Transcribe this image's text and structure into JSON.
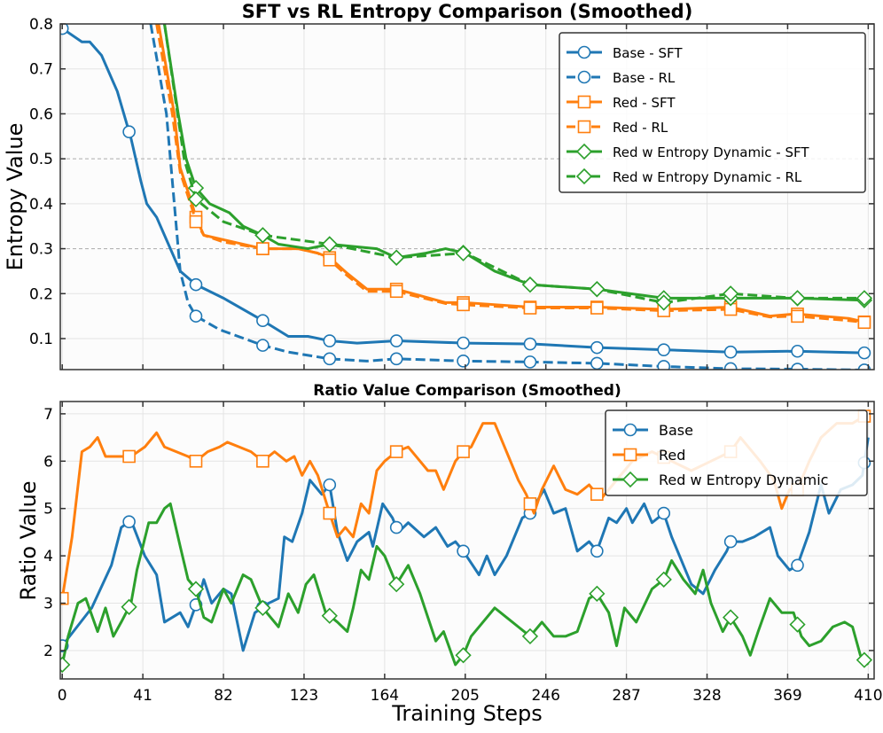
{
  "chart_data": [
    {
      "type": "line",
      "title": "SFT vs RL Entropy Comparison (Smoothed)",
      "xlabel": "",
      "ylabel": "Entropy Value",
      "xlim": [
        -1,
        413
      ],
      "ylim": [
        0.031,
        0.8
      ],
      "xticks": [
        0,
        41,
        82,
        123,
        164,
        205,
        246,
        287,
        328,
        369,
        410
      ],
      "yticks": [
        0.1,
        0.2,
        0.3,
        0.4,
        0.5,
        0.6,
        0.7,
        0.8
      ],
      "ytick_labels": [
        "0.1",
        "0.2",
        "0.3",
        "0.4",
        "0.5",
        "0.6",
        "0.7",
        "0.8"
      ],
      "grid": true,
      "legend": "top-right",
      "marker_steps": [
        0,
        34,
        68,
        102,
        136,
        170,
        204,
        238,
        272,
        306,
        340,
        374,
        408
      ],
      "series": [
        {
          "name": "Base - SFT",
          "color": "#1f77b4",
          "dash": "solid",
          "marker": "circle",
          "x": [
            0,
            10,
            14,
            20,
            28,
            35,
            40,
            43,
            48,
            54,
            60,
            68,
            82,
            102,
            115,
            125,
            136,
            150,
            170,
            205,
            240,
            272,
            306,
            340,
            373,
            410
          ],
          "y": [
            0.79,
            0.76,
            0.76,
            0.73,
            0.65,
            0.545,
            0.45,
            0.4,
            0.37,
            0.31,
            0.25,
            0.22,
            0.19,
            0.14,
            0.105,
            0.105,
            0.095,
            0.09,
            0.095,
            0.09,
            0.088,
            0.08,
            0.075,
            0.07,
            0.072,
            0.068
          ]
        },
        {
          "name": "Base - RL",
          "color": "#1f77b4",
          "dash": "dashed",
          "marker": "circle",
          "x": [
            45,
            53,
            57,
            60,
            64,
            68,
            80,
            102,
            115,
            136,
            155,
            170,
            205,
            238,
            272,
            306,
            340,
            373,
            410
          ],
          "y": [
            0.8,
            0.6,
            0.4,
            0.25,
            0.18,
            0.15,
            0.12,
            0.085,
            0.07,
            0.055,
            0.05,
            0.055,
            0.05,
            0.048,
            0.045,
            0.038,
            0.033,
            0.032,
            0.03
          ]
        },
        {
          "name": "Red - SFT",
          "color": "#ff7f0e",
          "dash": "solid",
          "marker": "square",
          "x": [
            49,
            57,
            60,
            66,
            68,
            72,
            82,
            102,
            120,
            130,
            136,
            145,
            155,
            170,
            195,
            205,
            238,
            272,
            306,
            340,
            360,
            373,
            400,
            410
          ],
          "y": [
            0.8,
            0.6,
            0.48,
            0.4,
            0.37,
            0.33,
            0.32,
            0.3,
            0.3,
            0.29,
            0.28,
            0.245,
            0.21,
            0.21,
            0.18,
            0.18,
            0.17,
            0.17,
            0.165,
            0.17,
            0.15,
            0.155,
            0.145,
            0.135
          ]
        },
        {
          "name": "Red - RL",
          "color": "#ff7f0e",
          "dash": "dashed",
          "marker": "square",
          "x": [
            48,
            56,
            60,
            66,
            68,
            72,
            82,
            102,
            120,
            130,
            136,
            145,
            155,
            170,
            195,
            205,
            238,
            272,
            306,
            340,
            360,
            373,
            400,
            410
          ],
          "y": [
            0.8,
            0.6,
            0.47,
            0.39,
            0.36,
            0.33,
            0.315,
            0.3,
            0.3,
            0.29,
            0.275,
            0.24,
            0.205,
            0.205,
            0.178,
            0.175,
            0.168,
            0.168,
            0.162,
            0.165,
            0.148,
            0.15,
            0.14,
            0.135
          ]
        },
        {
          "name": "Red w Entropy Dynamic - SFT",
          "color": "#2ca02c",
          "dash": "solid",
          "marker": "diamond",
          "x": [
            52,
            59,
            63,
            68,
            75,
            85,
            92,
            102,
            110,
            125,
            136,
            160,
            170,
            185,
            195,
            205,
            220,
            238,
            272,
            306,
            340,
            373,
            410
          ],
          "y": [
            0.8,
            0.6,
            0.5,
            0.435,
            0.4,
            0.38,
            0.35,
            0.33,
            0.31,
            0.3,
            0.31,
            0.3,
            0.28,
            0.29,
            0.3,
            0.29,
            0.25,
            0.22,
            0.21,
            0.19,
            0.19,
            0.19,
            0.185
          ]
        },
        {
          "name": "Red w Entropy Dynamic - RL",
          "color": "#2ca02c",
          "dash": "dashed",
          "marker": "diamond",
          "x": [
            52,
            62,
            68,
            82,
            102,
            136,
            170,
            205,
            238,
            272,
            306,
            340,
            373,
            410
          ],
          "y": [
            0.8,
            0.5,
            0.41,
            0.36,
            0.33,
            0.31,
            0.28,
            0.29,
            0.22,
            0.21,
            0.18,
            0.2,
            0.19,
            0.19
          ]
        }
      ]
    },
    {
      "type": "line",
      "title": "Ratio Value Comparison (Smoothed)",
      "xlabel": "Training Steps",
      "ylabel": "Ratio Value",
      "xlim": [
        -1,
        413
      ],
      "ylim": [
        1.4,
        7.26
      ],
      "xticks": [
        0,
        41,
        82,
        123,
        164,
        205,
        246,
        287,
        328,
        369,
        410
      ],
      "xtick_labels": [
        "0",
        "41",
        "82",
        "123",
        "164",
        "205",
        "246",
        "287",
        "328",
        "369",
        "410"
      ],
      "yticks": [
        2,
        3,
        4,
        5,
        6,
        7
      ],
      "ytick_labels": [
        "2",
        "3",
        "4",
        "5",
        "6",
        "7"
      ],
      "grid": true,
      "legend": "top-right",
      "marker_steps": [
        0,
        34,
        68,
        102,
        136,
        170,
        204,
        238,
        272,
        306,
        340,
        374,
        408
      ],
      "series": [
        {
          "name": "Base",
          "color": "#1f77b4",
          "marker": "circle",
          "x": [
            0,
            15,
            25,
            30,
            35,
            42,
            48,
            52,
            60,
            64,
            70,
            72,
            76,
            82,
            86,
            92,
            98,
            105,
            110,
            113,
            117,
            122,
            126,
            132,
            136,
            140,
            145,
            150,
            156,
            158,
            163,
            168,
            171,
            176,
            184,
            190,
            196,
            200,
            204,
            212,
            216,
            220,
            226,
            234,
            238,
            245,
            250,
            256,
            262,
            268,
            272,
            278,
            282,
            287,
            290,
            296,
            300,
            306,
            310,
            315,
            320,
            326,
            332,
            338,
            340,
            346,
            352,
            360,
            364,
            370,
            374,
            380,
            386,
            390,
            396,
            402,
            407,
            410
          ],
          "y": [
            2.1,
            2.9,
            3.8,
            4.6,
            4.75,
            4.0,
            3.6,
            2.6,
            2.8,
            2.5,
            3.2,
            3.5,
            3.0,
            3.3,
            3.2,
            2.0,
            2.8,
            3.0,
            3.1,
            4.4,
            4.3,
            4.9,
            5.6,
            5.3,
            5.5,
            4.5,
            3.9,
            4.3,
            4.5,
            4.2,
            5.1,
            4.8,
            4.5,
            4.7,
            4.4,
            4.6,
            4.2,
            4.3,
            4.1,
            3.6,
            4.0,
            3.6,
            4.0,
            4.8,
            4.9,
            5.4,
            4.9,
            5.0,
            4.1,
            4.3,
            4.1,
            4.8,
            4.7,
            5.0,
            4.7,
            5.1,
            4.7,
            4.9,
            4.4,
            3.9,
            3.4,
            3.2,
            3.7,
            4.1,
            4.3,
            4.3,
            4.4,
            4.6,
            4.0,
            3.7,
            3.8,
            4.5,
            5.5,
            4.9,
            5.4,
            5.5,
            5.7,
            6.5
          ]
        },
        {
          "name": "Red",
          "color": "#ff7f0e",
          "marker": "square",
          "x": [
            0,
            5,
            10,
            14,
            18,
            22,
            30,
            35,
            42,
            48,
            52,
            58,
            64,
            68,
            74,
            80,
            84,
            90,
            96,
            102,
            108,
            114,
            118,
            122,
            126,
            130,
            133,
            136,
            140,
            144,
            148,
            152,
            156,
            160,
            164,
            170,
            176,
            180,
            186,
            190,
            194,
            200,
            204,
            208,
            214,
            220,
            226,
            232,
            236,
            240,
            244,
            250,
            256,
            262,
            268,
            274,
            280,
            290,
            300,
            310,
            320,
            330,
            340,
            345,
            355,
            362,
            366,
            370,
            374,
            380,
            386,
            394,
            402,
            410
          ],
          "y": [
            3.1,
            4.4,
            6.2,
            6.3,
            6.5,
            6.1,
            6.1,
            6.1,
            6.3,
            6.6,
            6.3,
            6.2,
            6.1,
            6.0,
            6.2,
            6.3,
            6.4,
            6.3,
            6.2,
            6.0,
            6.2,
            6.0,
            6.1,
            5.7,
            6.0,
            5.7,
            5.3,
            4.9,
            4.4,
            4.6,
            4.4,
            5.1,
            4.9,
            5.8,
            6.0,
            6.2,
            6.3,
            6.1,
            5.8,
            5.8,
            5.4,
            6.0,
            6.2,
            6.3,
            6.8,
            6.8,
            6.2,
            5.6,
            5.3,
            4.9,
            5.4,
            5.9,
            5.4,
            5.3,
            5.5,
            5.2,
            5.5,
            6.0,
            6.2,
            6.0,
            5.8,
            6.0,
            6.2,
            6.5,
            6.0,
            5.6,
            5.0,
            5.4,
            5.4,
            6.0,
            6.5,
            6.8,
            6.8,
            7.0
          ]
        },
        {
          "name": "Red w Entropy Dynamic",
          "color": "#2ca02c",
          "marker": "diamond",
          "x": [
            0,
            3,
            8,
            12,
            18,
            22,
            26,
            30,
            35,
            38,
            44,
            48,
            52,
            55,
            60,
            64,
            68,
            72,
            76,
            82,
            86,
            92,
            96,
            102,
            106,
            110,
            115,
            120,
            124,
            128,
            134,
            140,
            145,
            148,
            152,
            156,
            160,
            164,
            170,
            176,
            182,
            190,
            194,
            200,
            204,
            208,
            214,
            220,
            226,
            232,
            238,
            244,
            250,
            256,
            262,
            268,
            272,
            278,
            282,
            286,
            292,
            300,
            306,
            310,
            316,
            322,
            326,
            330,
            336,
            340,
            346,
            350,
            354,
            360,
            366,
            372,
            376,
            380,
            386,
            392,
            398,
            402,
            406,
            410
          ],
          "y": [
            1.7,
            2.3,
            3.0,
            3.1,
            2.4,
            2.9,
            2.3,
            2.6,
            3.0,
            3.7,
            4.7,
            4.7,
            5.0,
            5.1,
            4.2,
            3.5,
            3.3,
            2.7,
            2.6,
            3.3,
            3.0,
            3.6,
            3.5,
            2.9,
            2.7,
            2.5,
            3.2,
            2.8,
            3.4,
            3.6,
            2.8,
            2.6,
            2.4,
            2.9,
            3.7,
            3.5,
            4.2,
            4.0,
            3.4,
            3.8,
            3.2,
            2.2,
            2.4,
            1.7,
            1.9,
            2.3,
            2.6,
            2.9,
            2.7,
            2.5,
            2.3,
            2.6,
            2.3,
            2.3,
            2.4,
            3.1,
            3.2,
            2.8,
            2.1,
            2.9,
            2.6,
            3.3,
            3.5,
            3.9,
            3.5,
            3.2,
            3.7,
            3.0,
            2.4,
            2.7,
            2.3,
            1.9,
            2.4,
            3.1,
            2.8,
            2.8,
            2.3,
            2.1,
            2.2,
            2.5,
            2.6,
            2.5,
            1.9,
            1.7
          ]
        }
      ]
    }
  ]
}
